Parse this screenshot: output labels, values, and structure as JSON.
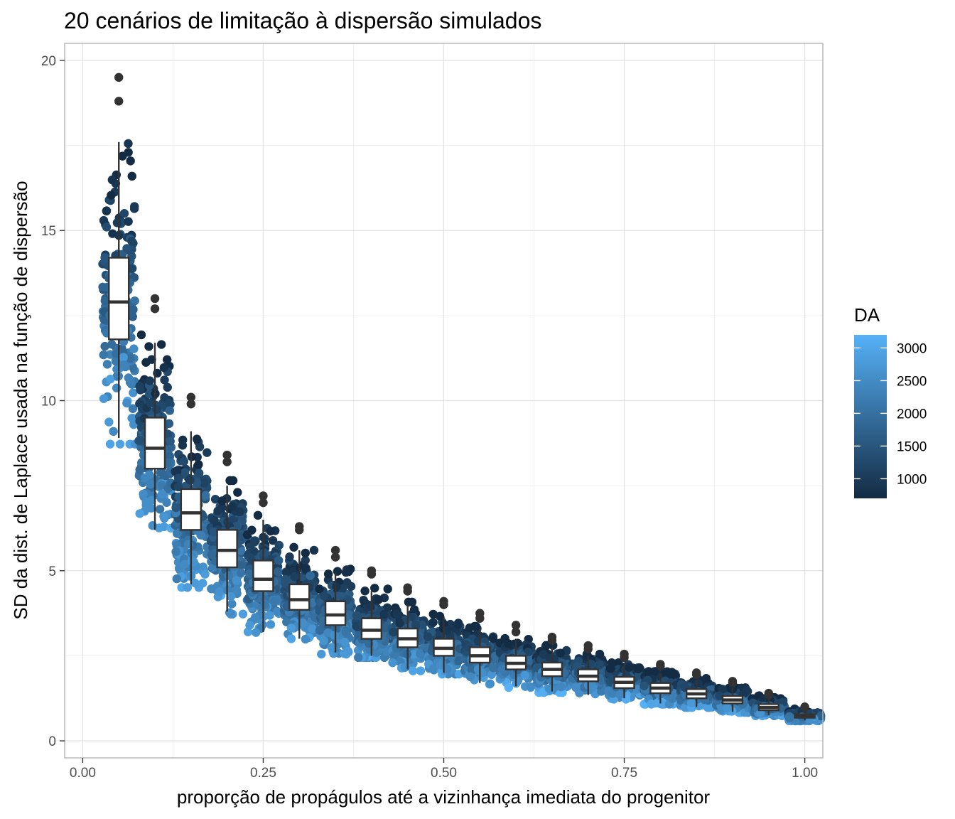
{
  "chart_data": {
    "type": "scatter",
    "title": "20 cenários de limitação à dispersão simulados",
    "xlabel": "proporção de propágulos até a vizinhança imediata do progenitor",
    "ylabel": "SD da dist. de Laplace usada na função de dispersão",
    "xlim": [
      -0.025,
      1.025
    ],
    "ylim": [
      -0.5,
      20.5
    ],
    "x_ticks": [
      0.0,
      0.25,
      0.5,
      0.75,
      1.0
    ],
    "x_tick_labels": [
      "0.00",
      "0.25",
      "0.50",
      "0.75",
      "1.00"
    ],
    "y_ticks": [
      0,
      5,
      10,
      15,
      20
    ],
    "y_tick_labels": [
      "0",
      "5",
      "10",
      "15",
      "20"
    ],
    "grid": true,
    "legend": {
      "title": "DA",
      "position": "right",
      "type": "colorbar",
      "range": [
        700,
        3200
      ],
      "ticks": [
        1000,
        1500,
        2000,
        2500,
        3000
      ],
      "tick_labels": [
        "1000",
        "1500",
        "2000",
        "2500",
        "3000"
      ],
      "color_low": "#132B43",
      "color_high": "#56B1F7"
    },
    "boxplots": [
      {
        "x": 0.05,
        "whisker_low": 8.9,
        "q1": 11.8,
        "median": 12.9,
        "q3": 14.2,
        "whisker_high": 17.6,
        "outliers": [
          18.8,
          19.5
        ]
      },
      {
        "x": 0.1,
        "whisker_low": 6.2,
        "q1": 8.0,
        "median": 8.6,
        "q3": 9.5,
        "whisker_high": 11.7,
        "outliers": [
          12.7,
          13.0
        ]
      },
      {
        "x": 0.15,
        "whisker_low": 4.6,
        "q1": 6.2,
        "median": 6.7,
        "q3": 7.4,
        "whisker_high": 9.1,
        "outliers": [
          9.9,
          10.1
        ]
      },
      {
        "x": 0.2,
        "whisker_low": 3.8,
        "q1": 5.1,
        "median": 5.6,
        "q3": 6.2,
        "whisker_high": 7.5,
        "outliers": [
          8.2,
          8.4
        ]
      },
      {
        "x": 0.25,
        "whisker_low": 3.2,
        "q1": 4.4,
        "median": 4.75,
        "q3": 5.3,
        "whisker_high": 6.5,
        "outliers": [
          7.0,
          7.2
        ]
      },
      {
        "x": 0.3,
        "whisker_low": 3.0,
        "q1": 3.85,
        "median": 4.15,
        "q3": 4.6,
        "whisker_high": 5.6,
        "outliers": [
          6.2,
          6.3
        ]
      },
      {
        "x": 0.35,
        "whisker_low": 2.6,
        "q1": 3.4,
        "median": 3.7,
        "q3": 4.1,
        "whisker_high": 4.95,
        "outliers": [
          5.4,
          5.6
        ]
      },
      {
        "x": 0.4,
        "whisker_low": 2.5,
        "q1": 3.0,
        "median": 3.25,
        "q3": 3.6,
        "whisker_high": 4.4,
        "outliers": [
          4.9,
          5.0
        ]
      },
      {
        "x": 0.45,
        "whisker_low": 2.1,
        "q1": 2.75,
        "median": 3.0,
        "q3": 3.3,
        "whisker_high": 4.0,
        "outliers": [
          4.4,
          4.5
        ]
      },
      {
        "x": 0.5,
        "whisker_low": 2.0,
        "q1": 2.5,
        "median": 2.72,
        "q3": 3.0,
        "whisker_high": 3.65,
        "outliers": [
          4.0,
          4.1
        ]
      },
      {
        "x": 0.55,
        "whisker_low": 1.7,
        "q1": 2.3,
        "median": 2.5,
        "q3": 2.75,
        "whisker_high": 3.3,
        "outliers": [
          3.6,
          3.75
        ]
      },
      {
        "x": 0.6,
        "whisker_low": 1.6,
        "q1": 2.1,
        "median": 2.28,
        "q3": 2.5,
        "whisker_high": 3.0,
        "outliers": [
          3.2,
          3.4
        ]
      },
      {
        "x": 0.65,
        "whisker_low": 1.45,
        "q1": 1.9,
        "median": 2.1,
        "q3": 2.3,
        "whisker_high": 2.75,
        "outliers": [
          2.95,
          3.05
        ]
      },
      {
        "x": 0.7,
        "whisker_low": 1.35,
        "q1": 1.75,
        "median": 1.9,
        "q3": 2.1,
        "whisker_high": 2.5,
        "outliers": [
          2.7,
          2.8
        ]
      },
      {
        "x": 0.75,
        "whisker_low": 1.25,
        "q1": 1.55,
        "median": 1.72,
        "q3": 1.88,
        "whisker_high": 2.25,
        "outliers": [
          2.45,
          2.55
        ]
      },
      {
        "x": 0.8,
        "whisker_low": 1.1,
        "q1": 1.4,
        "median": 1.55,
        "q3": 1.7,
        "whisker_high": 2.0,
        "outliers": [
          2.2,
          2.25
        ]
      },
      {
        "x": 0.85,
        "whisker_low": 1.0,
        "q1": 1.25,
        "median": 1.38,
        "q3": 1.52,
        "whisker_high": 1.8,
        "outliers": [
          1.95,
          2.0
        ]
      },
      {
        "x": 0.9,
        "whisker_low": 0.85,
        "q1": 1.1,
        "median": 1.2,
        "q3": 1.32,
        "whisker_high": 1.55,
        "outliers": [
          1.7,
          1.75
        ]
      },
      {
        "x": 0.95,
        "whisker_low": 0.75,
        "q1": 0.9,
        "median": 0.98,
        "q3": 1.08,
        "whisker_high": 1.3,
        "outliers": [
          1.35,
          1.4
        ]
      },
      {
        "x": 1.0,
        "whisker_low": 0.6,
        "q1": 0.68,
        "median": 0.72,
        "q3": 0.78,
        "whisker_high": 0.95,
        "outliers": [
          0.98,
          1.0
        ]
      }
    ]
  }
}
